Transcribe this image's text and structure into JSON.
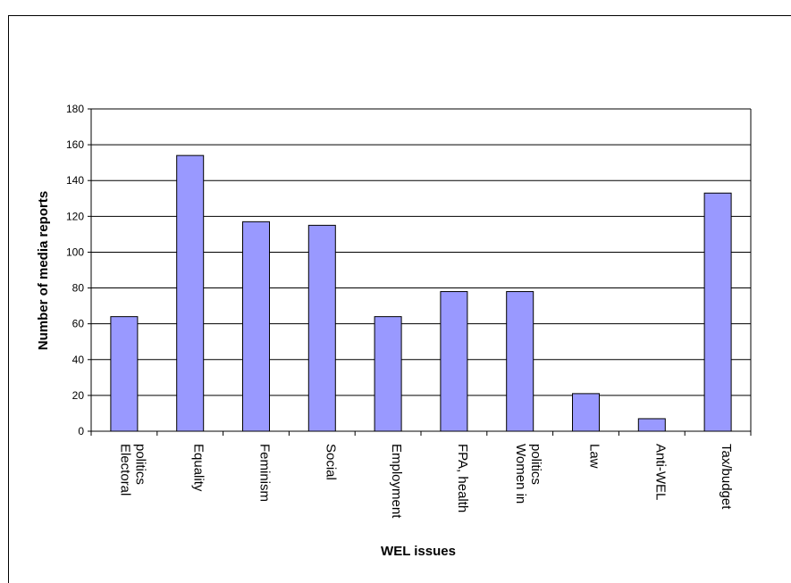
{
  "chart_data": {
    "type": "bar",
    "title": "",
    "xlabel": "WEL issues",
    "ylabel": "Number of media reports",
    "ylim": [
      0,
      180
    ],
    "yticks": [
      0,
      20,
      40,
      60,
      80,
      100,
      120,
      140,
      160,
      180
    ],
    "grid": true,
    "categories": [
      [
        "Electoral",
        "politics"
      ],
      [
        "Equality"
      ],
      [
        "Feminism"
      ],
      [
        "Social"
      ],
      [
        "Employment"
      ],
      [
        "FPA, health"
      ],
      [
        "Women in",
        "politics"
      ],
      [
        "Law"
      ],
      [
        "Anti-WEL"
      ],
      [
        "Tax/budget"
      ]
    ],
    "values": [
      64,
      154,
      117,
      115,
      64,
      78,
      78,
      21,
      7,
      133
    ],
    "colors": {
      "bar_fill": "#9999ff",
      "bar_stroke": "#000000",
      "grid": "#000000",
      "background": "#ffffff"
    }
  }
}
